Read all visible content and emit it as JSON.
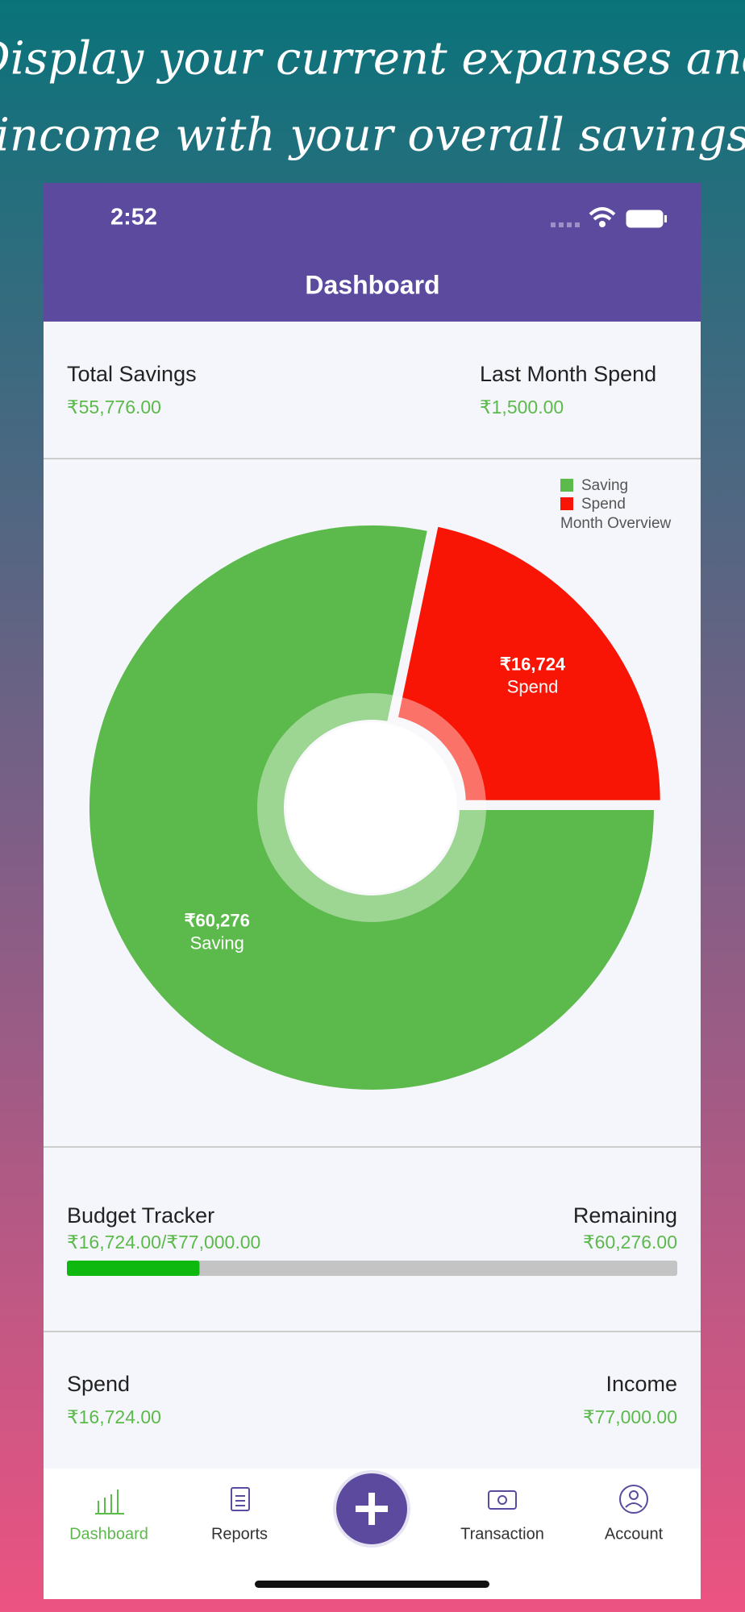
{
  "headline": [
    "Display your current expanses and",
    "income with your overall savings"
  ],
  "status_bar": {
    "time": "2:52"
  },
  "header": {
    "title": "Dashboard"
  },
  "summary": {
    "total_savings": {
      "label": "Total Savings",
      "value": "₹55,776.00"
    },
    "last_month_spend": {
      "label": "Last Month Spend",
      "value": "₹1,500.00"
    }
  },
  "chart_data": {
    "type": "pie",
    "title": "Month Overview",
    "categories": [
      "Saving",
      "Spend"
    ],
    "values": [
      60276,
      16724
    ],
    "value_labels": [
      "₹60,276",
      "₹16,724"
    ],
    "colors": [
      "#5cb94b",
      "#f91505"
    ],
    "legend": "top-right"
  },
  "budget_tracker": {
    "label": "Budget Tracker",
    "spent": "₹16,724.00",
    "separator": "/",
    "total": "₹77,000.00",
    "remaining_label": "Remaining",
    "remaining": "₹60,276.00",
    "bar": {
      "value": 16724,
      "max": 77000
    }
  },
  "totals": {
    "spend": {
      "label": "Spend",
      "value": "₹16,724.00"
    },
    "income": {
      "label": "Income",
      "value": "₹77,000.00"
    }
  },
  "tab_bar": [
    "Dashboard",
    "Reports",
    "Transaction",
    "Account"
  ]
}
